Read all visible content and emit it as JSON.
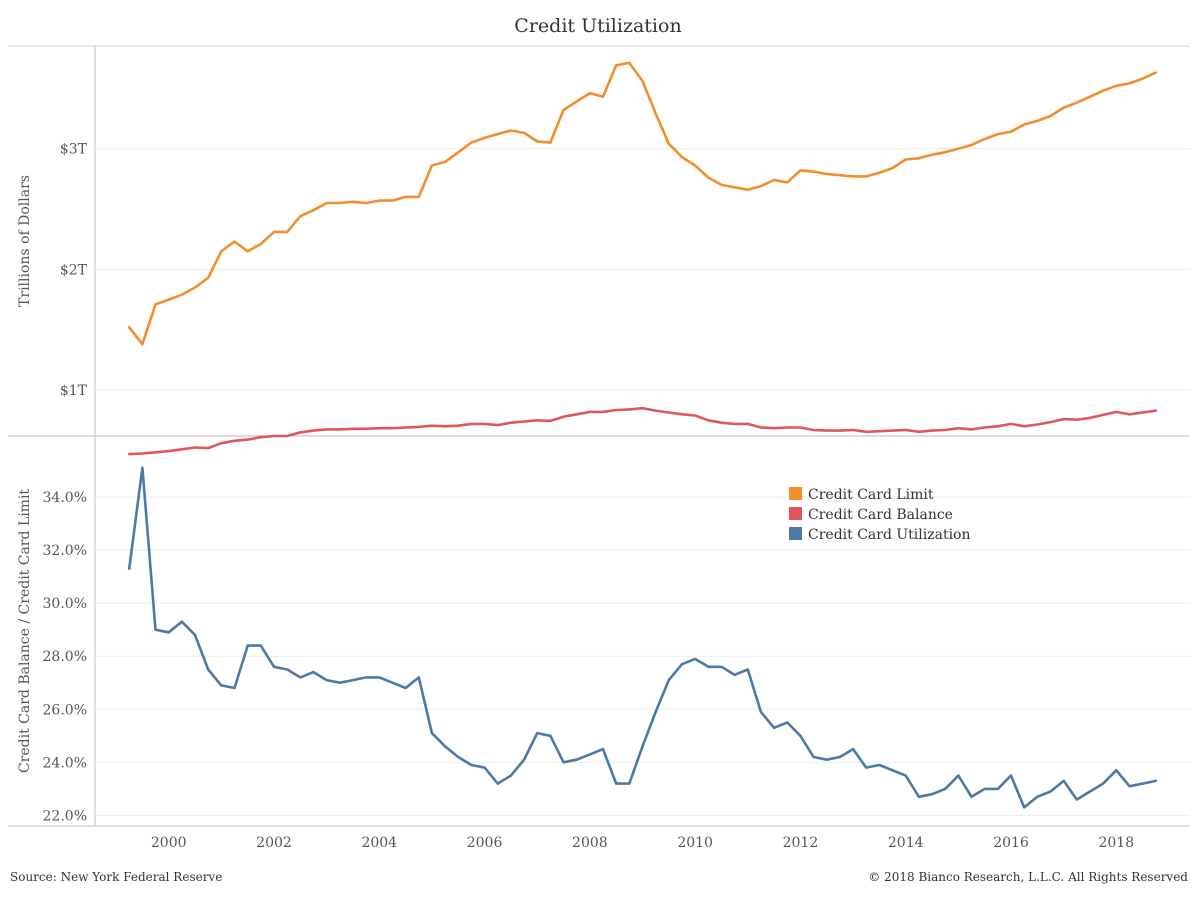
{
  "title": "Credit Utilization",
  "footer": {
    "source": "Source: New York Federal Reserve",
    "copyright": "© 2018 Bianco Research, L.L.C. All Rights Reserved"
  },
  "chart_data": [
    {
      "type": "line",
      "panel": "top",
      "ylabel": "Trillions of Dollars",
      "ylim": [
        0.62,
        3.85
      ],
      "yticks": [
        1,
        2,
        3
      ],
      "ytick_labels": [
        "$1T",
        "$2T",
        "$3T"
      ],
      "grid": "horizontal",
      "series": [
        {
          "name": "Credit Card Limit",
          "color": "#F28E2B",
          "x": [
            1999.25,
            1999.5,
            1999.75,
            2000,
            2000.25,
            2000.5,
            2000.75,
            2001,
            2001.25,
            2001.5,
            2001.75,
            2002,
            2002.25,
            2002.5,
            2002.75,
            2003,
            2003.25,
            2003.5,
            2003.75,
            2004,
            2004.25,
            2004.5,
            2004.75,
            2005,
            2005.25,
            2005.5,
            2005.75,
            2006,
            2006.25,
            2006.5,
            2006.75,
            2007,
            2007.25,
            2007.5,
            2007.75,
            2008,
            2008.25,
            2008.5,
            2008.75,
            2009,
            2009.25,
            2009.5,
            2009.75,
            2010,
            2010.25,
            2010.5,
            2010.75,
            2011,
            2011.25,
            2011.5,
            2011.75,
            2012,
            2012.25,
            2012.5,
            2012.75,
            2013,
            2013.25,
            2013.5,
            2013.75,
            2014,
            2014.25,
            2014.5,
            2014.75,
            2015,
            2015.25,
            2015.5,
            2015.75,
            2016,
            2016.25,
            2016.5,
            2016.75,
            2017,
            2017.25,
            2017.5,
            2017.75,
            2018,
            2018.25,
            2018.5,
            2018.75
          ],
          "values": [
            1.52,
            1.38,
            1.71,
            1.75,
            1.79,
            1.85,
            1.93,
            2.15,
            2.23,
            2.15,
            2.21,
            2.31,
            2.31,
            2.44,
            2.49,
            2.55,
            2.55,
            2.56,
            2.55,
            2.57,
            2.57,
            2.6,
            2.6,
            2.86,
            2.89,
            2.97,
            3.05,
            3.09,
            3.12,
            3.15,
            3.13,
            3.06,
            3.05,
            3.32,
            3.39,
            3.46,
            3.43,
            3.69,
            3.71,
            3.56,
            3.29,
            3.04,
            2.93,
            2.86,
            2.76,
            2.7,
            2.68,
            2.66,
            2.69,
            2.74,
            2.72,
            2.82,
            2.81,
            2.79,
            2.78,
            2.77,
            2.77,
            2.8,
            2.84,
            2.91,
            2.92,
            2.95,
            2.97,
            3.0,
            3.03,
            3.08,
            3.12,
            3.14,
            3.2,
            3.23,
            3.27,
            3.34,
            3.38,
            3.43,
            3.48,
            3.52,
            3.54,
            3.58,
            3.63
          ]
        },
        {
          "name": "Credit Card Balance",
          "color": "#E15759",
          "x": [
            1999.25,
            1999.5,
            1999.75,
            2000,
            2000.25,
            2000.5,
            2000.75,
            2001,
            2001.25,
            2001.5,
            2001.75,
            2002,
            2002.25,
            2002.5,
            2002.75,
            2003,
            2003.25,
            2003.5,
            2003.75,
            2004,
            2004.25,
            2004.5,
            2004.75,
            2005,
            2005.25,
            2005.5,
            2005.75,
            2006,
            2006.25,
            2006.5,
            2006.75,
            2007,
            2007.25,
            2007.5,
            2007.75,
            2008,
            2008.25,
            2008.5,
            2008.75,
            2009,
            2009.25,
            2009.5,
            2009.75,
            2010,
            2010.25,
            2010.5,
            2010.75,
            2011,
            2011.25,
            2011.5,
            2011.75,
            2012,
            2012.25,
            2012.5,
            2012.75,
            2013,
            2013.25,
            2013.5,
            2013.75,
            2014,
            2014.25,
            2014.5,
            2014.75,
            2015,
            2015.25,
            2015.5,
            2015.75,
            2016,
            2016.25,
            2016.5,
            2016.75,
            2017,
            2017.25,
            2017.5,
            2017.75,
            2018,
            2018.25,
            2018.5,
            2018.75
          ],
          "values": [
            0.47,
            0.475,
            0.485,
            0.495,
            0.51,
            0.525,
            0.52,
            0.56,
            0.58,
            0.59,
            0.61,
            0.62,
            0.62,
            0.65,
            0.665,
            0.675,
            0.675,
            0.68,
            0.68,
            0.685,
            0.685,
            0.69,
            0.695,
            0.705,
            0.7,
            0.705,
            0.72,
            0.72,
            0.71,
            0.73,
            0.74,
            0.75,
            0.745,
            0.78,
            0.8,
            0.82,
            0.82,
            0.835,
            0.84,
            0.85,
            0.83,
            0.815,
            0.8,
            0.79,
            0.75,
            0.73,
            0.72,
            0.72,
            0.69,
            0.685,
            0.69,
            0.69,
            0.67,
            0.665,
            0.665,
            0.67,
            0.655,
            0.66,
            0.665,
            0.67,
            0.655,
            0.665,
            0.67,
            0.685,
            0.675,
            0.69,
            0.7,
            0.72,
            0.7,
            0.715,
            0.735,
            0.76,
            0.755,
            0.77,
            0.795,
            0.82,
            0.8,
            0.815,
            0.83
          ]
        }
      ]
    },
    {
      "type": "line",
      "panel": "bottom",
      "ylabel": "Credit Card Balance / Credit Card Limit",
      "ylim": [
        21.6,
        36.3
      ],
      "yticks": [
        22,
        24,
        26,
        28,
        30,
        32,
        34
      ],
      "ytick_labels": [
        "22.0%",
        "24.0%",
        "26.0%",
        "28.0%",
        "30.0%",
        "32.0%",
        "34.0%"
      ],
      "grid": "horizontal",
      "series": [
        {
          "name": "Credit Card Utilization",
          "color": "#4E79A7",
          "x": [
            1999.25,
            1999.5,
            1999.75,
            2000,
            2000.25,
            2000.5,
            2000.75,
            2001,
            2001.25,
            2001.5,
            2001.75,
            2002,
            2002.25,
            2002.5,
            2002.75,
            2003,
            2003.25,
            2003.5,
            2003.75,
            2004,
            2004.25,
            2004.5,
            2004.75,
            2005,
            2005.25,
            2005.5,
            2005.75,
            2006,
            2006.25,
            2006.5,
            2006.75,
            2007,
            2007.25,
            2007.5,
            2007.75,
            2008,
            2008.25,
            2008.5,
            2008.75,
            2009,
            2009.25,
            2009.5,
            2009.75,
            2010,
            2010.25,
            2010.5,
            2010.75,
            2011,
            2011.25,
            2011.5,
            2011.75,
            2012,
            2012.25,
            2012.5,
            2012.75,
            2013,
            2013.25,
            2013.5,
            2013.75,
            2014,
            2014.25,
            2014.5,
            2014.75,
            2015,
            2015.25,
            2015.5,
            2015.75,
            2016,
            2016.25,
            2016.5,
            2016.75,
            2017,
            2017.25,
            2017.5,
            2017.75,
            2018,
            2018.25,
            2018.5,
            2018.75
          ],
          "values": [
            31.3,
            35.1,
            29.0,
            28.9,
            29.3,
            28.8,
            27.5,
            26.9,
            26.8,
            28.4,
            28.4,
            27.6,
            27.5,
            27.2,
            27.4,
            27.1,
            27.0,
            27.1,
            27.2,
            27.2,
            27.0,
            26.8,
            27.2,
            25.1,
            24.6,
            24.2,
            23.9,
            23.8,
            23.2,
            23.5,
            24.1,
            25.1,
            25.0,
            24.0,
            24.1,
            24.3,
            24.5,
            23.2,
            23.2,
            24.6,
            25.9,
            27.1,
            27.7,
            27.9,
            27.6,
            27.6,
            27.3,
            27.5,
            25.9,
            25.3,
            25.5,
            25.0,
            24.2,
            24.1,
            24.2,
            24.5,
            23.8,
            23.9,
            23.7,
            23.5,
            22.7,
            22.8,
            23.0,
            23.5,
            22.7,
            23.0,
            23.0,
            23.5,
            22.3,
            22.7,
            22.9,
            23.3,
            22.6,
            22.9,
            23.2,
            23.7,
            23.1,
            23.2,
            23.3
          ]
        }
      ]
    }
  ],
  "x_axis": {
    "xlim": [
      1998.6,
      2019.4
    ],
    "ticks": [
      2000,
      2002,
      2004,
      2006,
      2008,
      2010,
      2012,
      2014,
      2016,
      2018
    ],
    "tick_labels": [
      "2000",
      "2002",
      "2004",
      "2006",
      "2008",
      "2010",
      "2012",
      "2014",
      "2016",
      "2018"
    ]
  },
  "legend": {
    "placement": "center-right",
    "items": [
      {
        "label": "Credit Card Limit",
        "color": "#F28E2B"
      },
      {
        "label": "Credit Card Balance",
        "color": "#E15759"
      },
      {
        "label": "Credit Card Utilization",
        "color": "#4E79A7"
      }
    ]
  }
}
